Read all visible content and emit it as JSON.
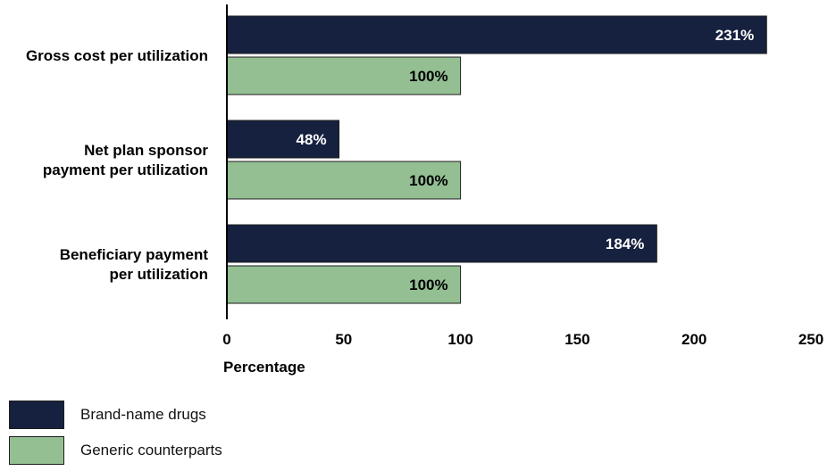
{
  "chart_data": {
    "type": "bar",
    "orientation": "horizontal",
    "categories": [
      "Gross cost per utilization",
      "Net plan sponsor payment per utilization",
      "Beneficiary payment per utilization"
    ],
    "category_label_lines": [
      [
        "Gross cost per utilization"
      ],
      [
        "Net plan sponsor",
        "payment per utilization"
      ],
      [
        "Beneficiary payment",
        "per utilization"
      ]
    ],
    "series": [
      {
        "name": "Brand-name drugs",
        "values": [
          231,
          48,
          184
        ],
        "labels": [
          "231%",
          "48%",
          "184%"
        ],
        "color": "#16213f",
        "label_color": "#ffffff"
      },
      {
        "name": "Generic counterparts",
        "values": [
          100,
          100,
          100
        ],
        "labels": [
          "100%",
          "100%",
          "100%"
        ],
        "color": "#93bf93",
        "label_color": "#000000"
      }
    ],
    "xlabel": "Percentage",
    "xlim": [
      0,
      250
    ],
    "xticks": [
      0,
      50,
      100,
      150,
      200,
      250
    ],
    "grid": false,
    "legend_position": "bottom-left"
  }
}
